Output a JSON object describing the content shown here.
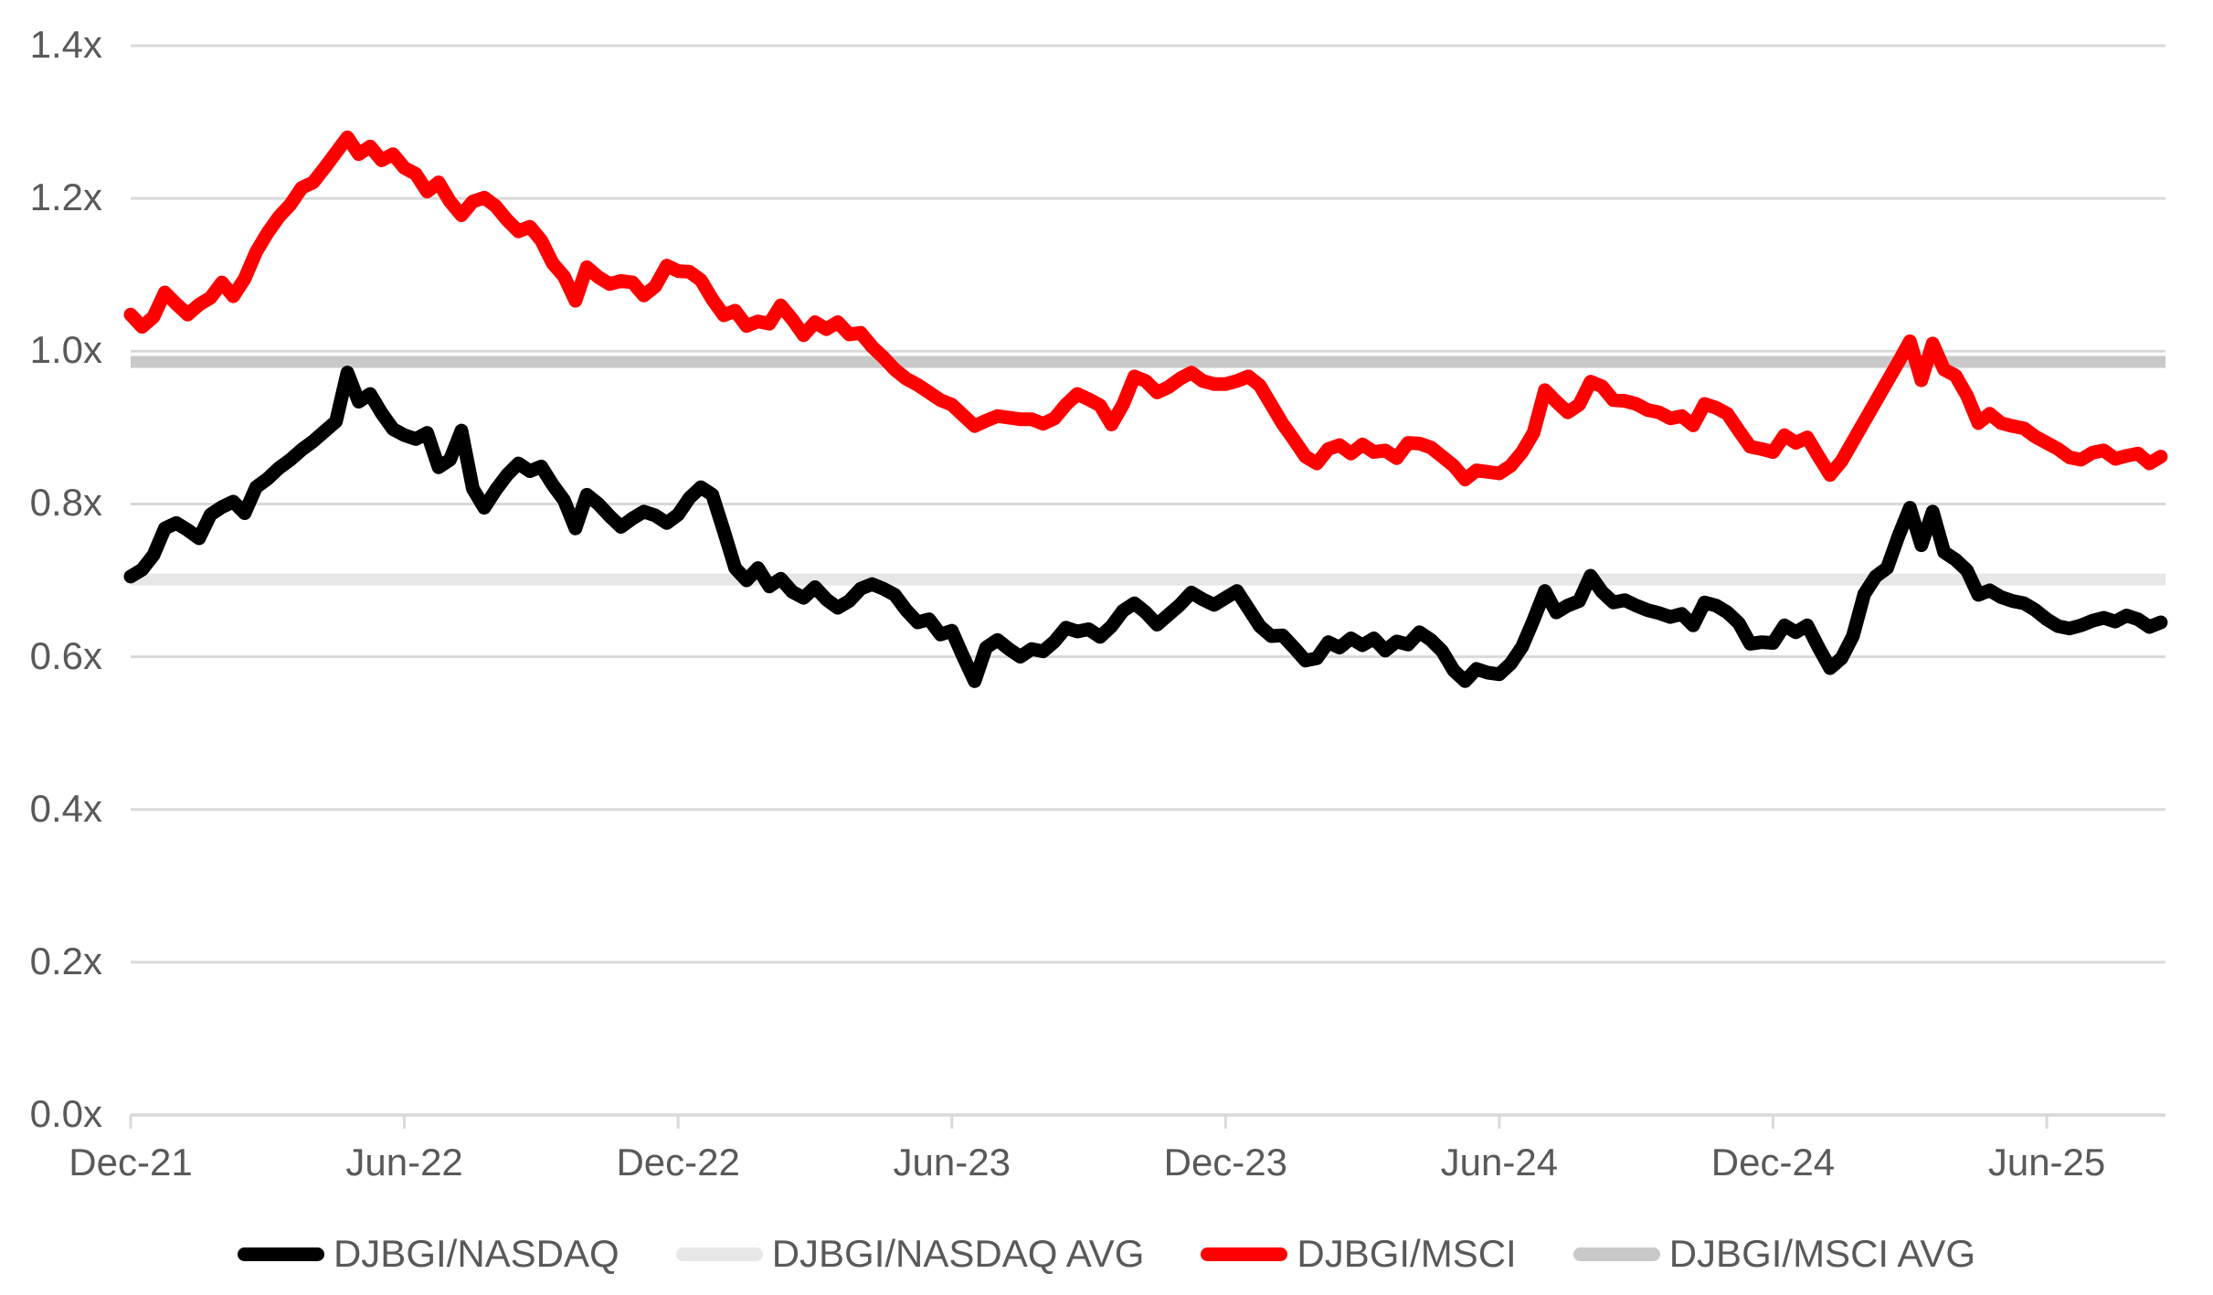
{
  "chart_data": {
    "type": "line",
    "title": "",
    "x_unit": "months since Dec-2021",
    "x_axis": {
      "tick_labels": [
        "Dec-21",
        "Jun-22",
        "Dec-22",
        "Jun-23",
        "Dec-23",
        "Jun-24",
        "Dec-24",
        "Jun-25"
      ],
      "tick_months": [
        0,
        6,
        12,
        18,
        24,
        30,
        36,
        42
      ],
      "range_months": [
        0,
        44.6
      ]
    },
    "y_axis": {
      "tick_labels": [
        "0.0x",
        "0.2x",
        "0.4x",
        "0.6x",
        "0.8x",
        "1.0x",
        "1.2x",
        "1.4x"
      ],
      "tick_values": [
        0.0,
        0.2,
        0.4,
        0.6,
        0.8,
        1.0,
        1.2,
        1.4
      ],
      "ylim": [
        0,
        1.4
      ]
    },
    "grid": "horizontal",
    "legend_position": "bottom",
    "colors": {
      "djbgi_nasdaq": "#000000",
      "djbgi_nasdaq_avg": "#e7e7e7",
      "djbgi_msci": "#ff0000",
      "djbgi_msci_avg": "#c9c9c9",
      "gridline": "#d9d9d9",
      "axis_text": "#595959"
    },
    "series": [
      {
        "name": "DJBGI/NASDAQ",
        "type": "line",
        "color": "#000000",
        "t_start": 0,
        "t_step": 0.25,
        "values": [
          0.705,
          0.714,
          0.733,
          0.768,
          0.775,
          0.766,
          0.755,
          0.786,
          0.796,
          0.803,
          0.788,
          0.822,
          0.833,
          0.847,
          0.858,
          0.871,
          0.882,
          0.895,
          0.908,
          0.972,
          0.934,
          0.944,
          0.919,
          0.898,
          0.89,
          0.885,
          0.893,
          0.848,
          0.858,
          0.896,
          0.82,
          0.795,
          0.818,
          0.838,
          0.853,
          0.843,
          0.849,
          0.825,
          0.805,
          0.768,
          0.812,
          0.8,
          0.784,
          0.77,
          0.781,
          0.79,
          0.785,
          0.775,
          0.786,
          0.808,
          0.822,
          0.812,
          0.765,
          0.716,
          0.7,
          0.716,
          0.692,
          0.702,
          0.685,
          0.677,
          0.691,
          0.675,
          0.664,
          0.673,
          0.689,
          0.695,
          0.689,
          0.681,
          0.661,
          0.645,
          0.649,
          0.629,
          0.634,
          0.6,
          0.568,
          0.612,
          0.622,
          0.61,
          0.6,
          0.61,
          0.607,
          0.62,
          0.638,
          0.633,
          0.636,
          0.626,
          0.64,
          0.66,
          0.67,
          0.658,
          0.642,
          0.655,
          0.668,
          0.684,
          0.675,
          0.668,
          0.677,
          0.686,
          0.663,
          0.64,
          0.627,
          0.628,
          0.612,
          0.595,
          0.598,
          0.619,
          0.612,
          0.624,
          0.615,
          0.624,
          0.608,
          0.62,
          0.616,
          0.632,
          0.622,
          0.607,
          0.582,
          0.568,
          0.584,
          0.579,
          0.577,
          0.591,
          0.613,
          0.648,
          0.686,
          0.658,
          0.667,
          0.673,
          0.706,
          0.685,
          0.671,
          0.674,
          0.667,
          0.661,
          0.657,
          0.652,
          0.656,
          0.641,
          0.671,
          0.667,
          0.658,
          0.644,
          0.617,
          0.619,
          0.618,
          0.641,
          0.632,
          0.641,
          0.612,
          0.585,
          0.598,
          0.627,
          0.682,
          0.705,
          0.716,
          0.758,
          0.795,
          0.746,
          0.79,
          0.737,
          0.727,
          0.713,
          0.681,
          0.687,
          0.678,
          0.673,
          0.67,
          0.661,
          0.649,
          0.64,
          0.637,
          0.641,
          0.647,
          0.651,
          0.646,
          0.654,
          0.649,
          0.639,
          0.645
        ]
      },
      {
        "name": "DJBGI/NASDAQ AVG",
        "type": "avg-line",
        "color": "#e7e7e7",
        "value": 0.701
      },
      {
        "name": "DJBGI/MSCI",
        "type": "line",
        "color": "#ff0000",
        "t_start": 0,
        "t_step": 0.25,
        "values": [
          1.048,
          1.032,
          1.045,
          1.077,
          1.062,
          1.048,
          1.061,
          1.07,
          1.09,
          1.072,
          1.095,
          1.13,
          1.155,
          1.176,
          1.192,
          1.214,
          1.221,
          1.24,
          1.26,
          1.28,
          1.258,
          1.268,
          1.25,
          1.258,
          1.24,
          1.232,
          1.209,
          1.221,
          1.196,
          1.178,
          1.196,
          1.201,
          1.19,
          1.172,
          1.157,
          1.163,
          1.145,
          1.115,
          1.098,
          1.066,
          1.11,
          1.097,
          1.088,
          1.092,
          1.09,
          1.073,
          1.085,
          1.112,
          1.105,
          1.104,
          1.093,
          1.068,
          1.047,
          1.053,
          1.033,
          1.039,
          1.036,
          1.06,
          1.042,
          1.021,
          1.038,
          1.029,
          1.038,
          1.022,
          1.024,
          1.006,
          0.992,
          0.976,
          0.964,
          0.956,
          0.946,
          0.936,
          0.93,
          0.916,
          0.902,
          0.909,
          0.915,
          0.913,
          0.911,
          0.911,
          0.905,
          0.912,
          0.93,
          0.944,
          0.937,
          0.929,
          0.904,
          0.93,
          0.967,
          0.961,
          0.946,
          0.953,
          0.964,
          0.972,
          0.961,
          0.957,
          0.957,
          0.961,
          0.967,
          0.955,
          0.93,
          0.905,
          0.884,
          0.862,
          0.853,
          0.872,
          0.877,
          0.866,
          0.878,
          0.868,
          0.87,
          0.86,
          0.88,
          0.879,
          0.874,
          0.862,
          0.85,
          0.832,
          0.844,
          0.842,
          0.84,
          0.85,
          0.868,
          0.893,
          0.949,
          0.934,
          0.92,
          0.93,
          0.96,
          0.954,
          0.936,
          0.935,
          0.931,
          0.923,
          0.92,
          0.912,
          0.915,
          0.903,
          0.931,
          0.926,
          0.918,
          0.896,
          0.875,
          0.872,
          0.868,
          0.89,
          0.88,
          0.887,
          0.862,
          0.838,
          0.856,
          0.882,
          0.908,
          0.934,
          0.96,
          0.986,
          1.013,
          0.962,
          1.01,
          0.976,
          0.968,
          0.942,
          0.906,
          0.918,
          0.906,
          0.902,
          0.899,
          0.888,
          0.88,
          0.872,
          0.861,
          0.858,
          0.867,
          0.87,
          0.859,
          0.863,
          0.866,
          0.853,
          0.862
        ]
      },
      {
        "name": "DJBGI/MSCI AVG",
        "type": "avg-line",
        "color": "#c9c9c9",
        "value": 0.986
      }
    ]
  }
}
